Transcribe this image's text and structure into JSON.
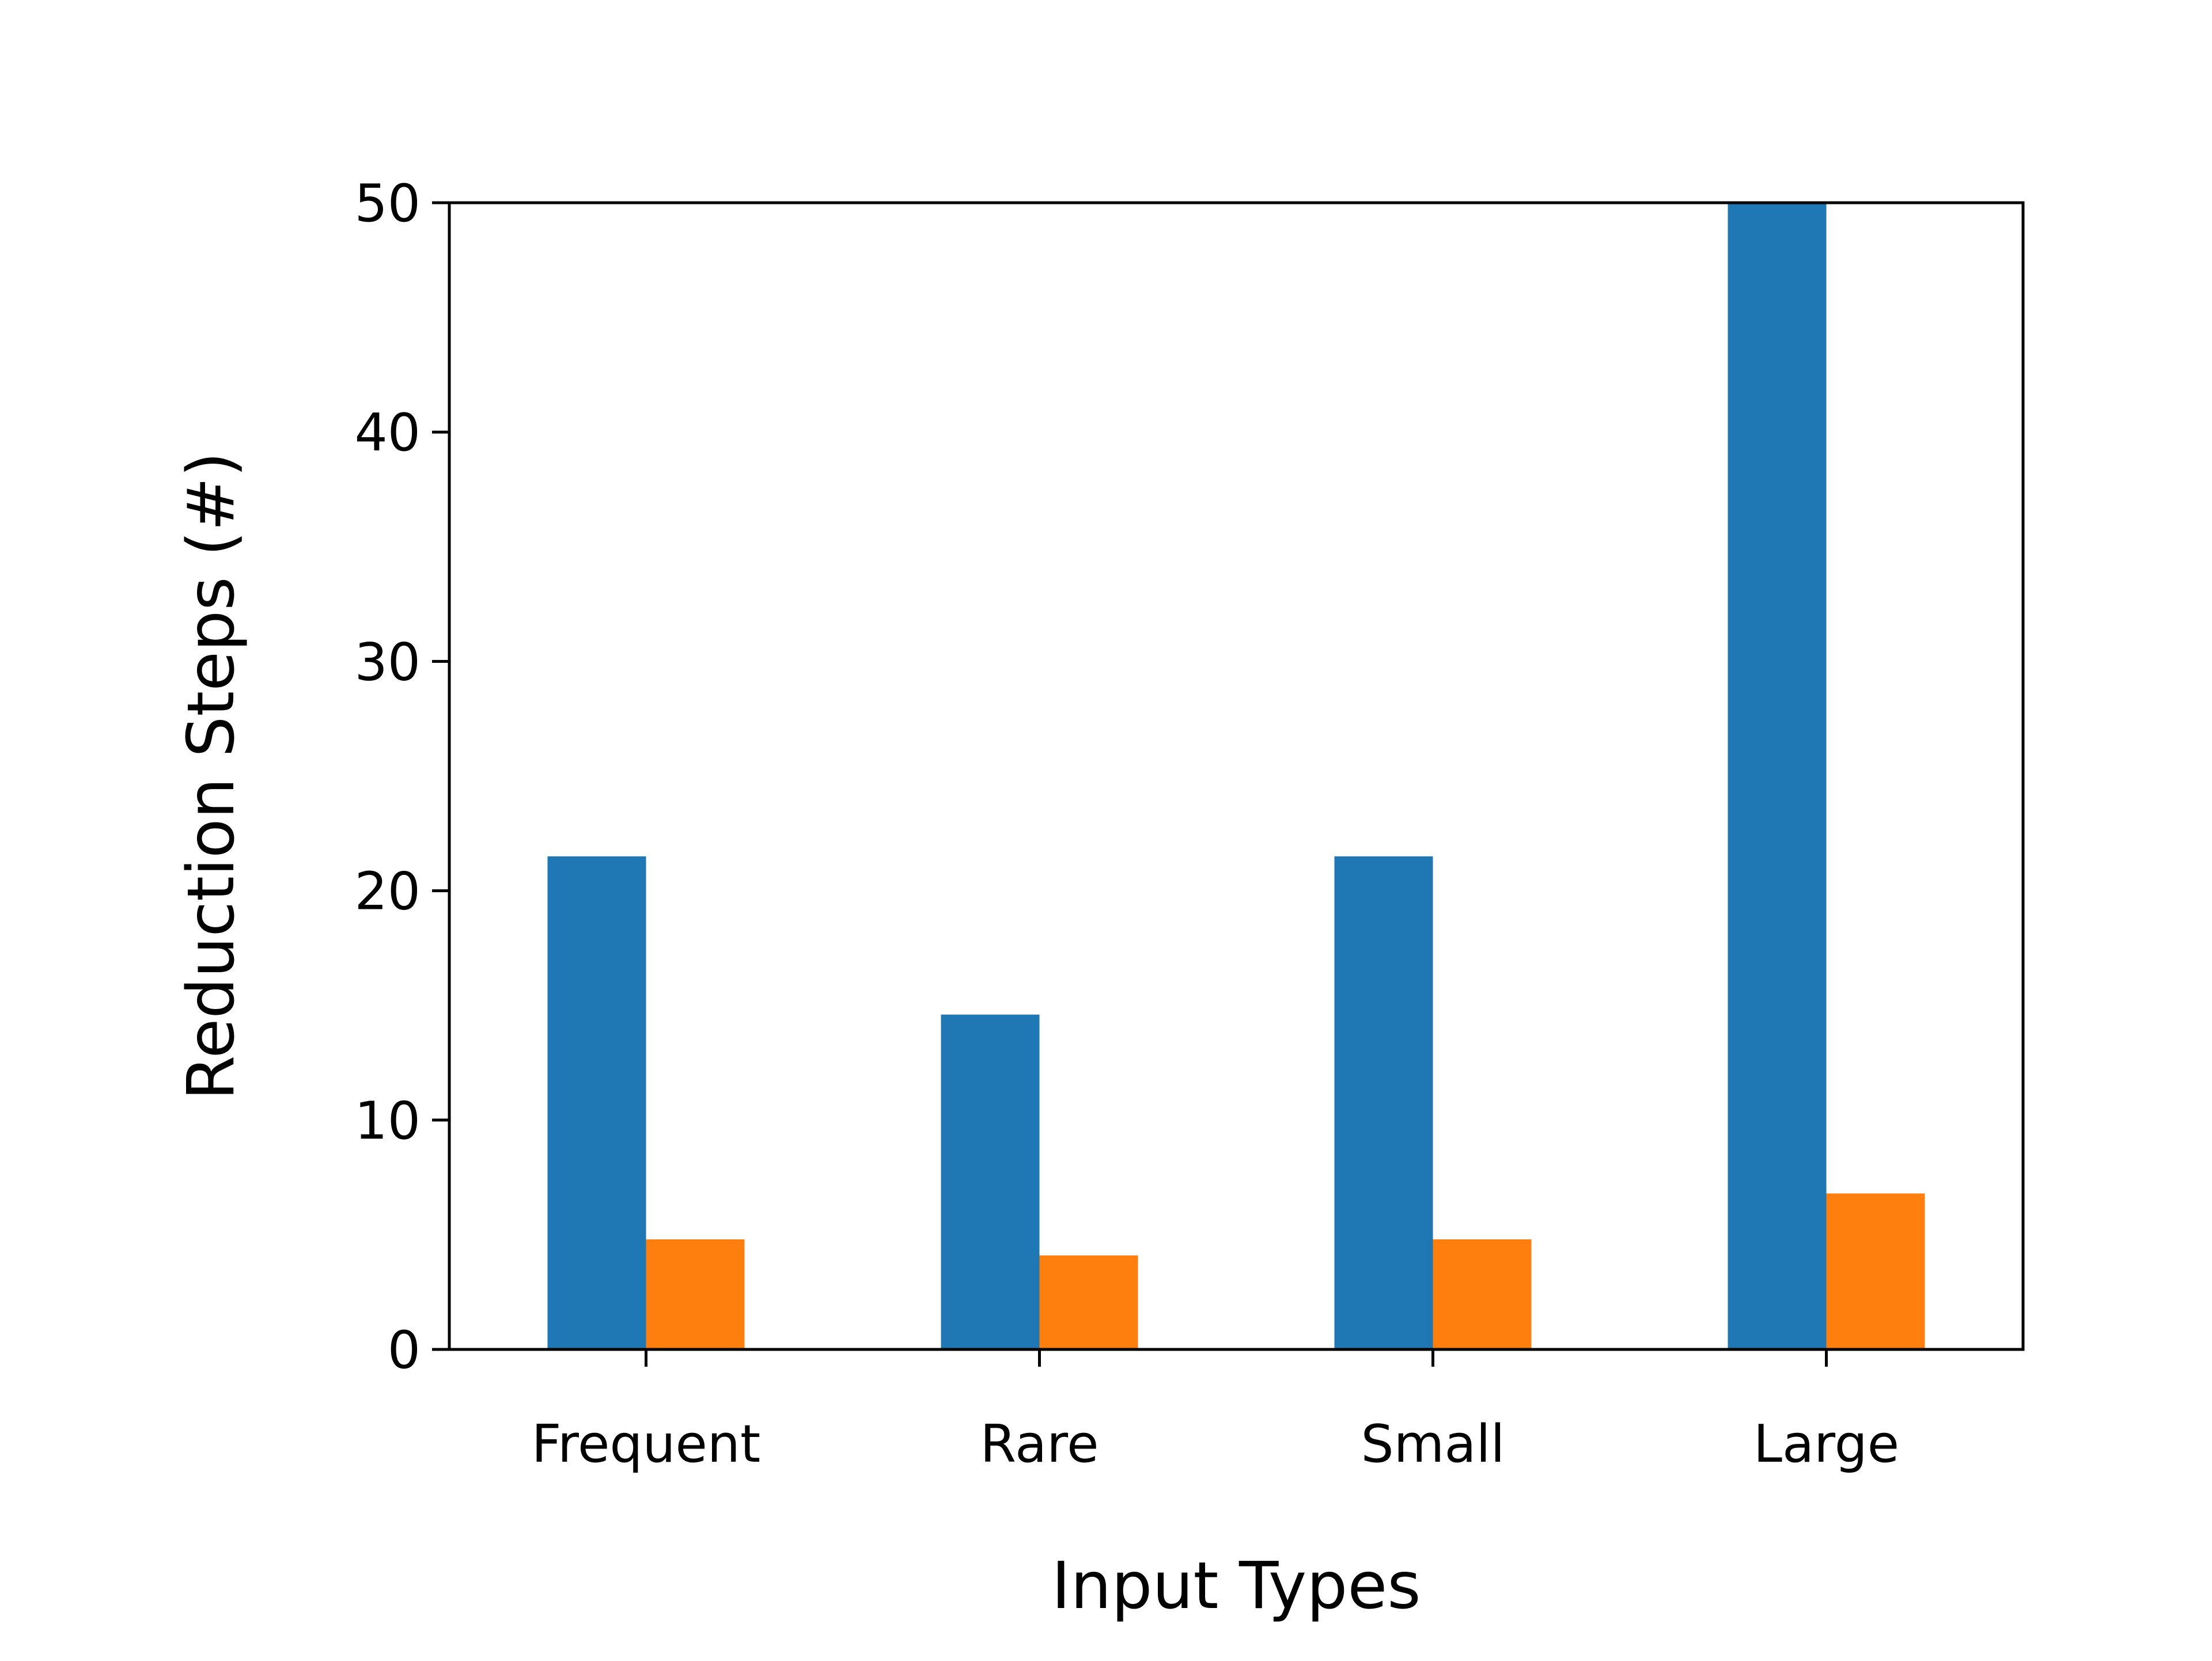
{
  "chart_data": {
    "type": "bar",
    "title": "",
    "xlabel": "Input Types",
    "ylabel": "Reduction Steps (#)",
    "categories": [
      "Frequent",
      "Rare",
      "Small",
      "Large"
    ],
    "series": [
      {
        "values": [
          21.5,
          14.6,
          21.5,
          50
        ],
        "color": "#1f77b4"
      },
      {
        "values": [
          4.8,
          4.1,
          4.8,
          6.8
        ],
        "color": "#ff7f0e"
      }
    ],
    "ylim": [
      0,
      50
    ],
    "yticks": [
      "0",
      "10",
      "20",
      "30",
      "40",
      "50"
    ],
    "grid": false,
    "legend": "none"
  }
}
